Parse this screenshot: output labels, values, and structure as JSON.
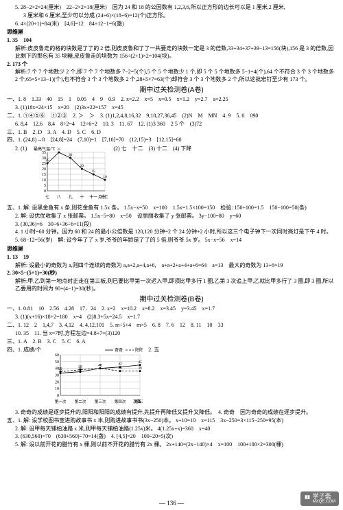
{
  "top": {
    "l1": "5. 28−2×2=24(厘米)　22−2×2=18(厘米)　因为 24 和 18 的公因数有 1,2,3,6,所以正方形的边长可以是 1 厘米,2 厘米,",
    "l2": "3 厘米和 6 厘米,至少可以分成 (24÷6)×(18÷6)=12(个)正方形。",
    "l3": "6. 4×(20÷1)=84(米)　[4,6]=12　84÷12−1=6(盏)"
  },
  "ssA": "思维屋",
  "swA": {
    "l1": "1. 35　104",
    "l2": "解析:皮皮鲁走的格的块数是了了的 2 倍,则皮皮鲁和了了一共要走的块数一定是 3 的倍数,33+34+37+39−13=156(块),156 是 3 的倍数,因此剩下的那包有 35 块糖,皮皮鲁走的块数为 156÷(2+1)×2=104(块)。",
    "l3": "2. 173 个",
    "l4": "解析:7 个 7 个地数少 2 个,即 7 个 7 个地数多 7−2=5(个),5 个 5 个地数少 1 个,即 5 个 5 个地数多 5−1=4(个),64 个不符合 3 个 3 个地数多 2 个,65=5×13−1)(个),也不符合 3 个 3 个地数多 2 个,28+5×7=63(个)却符合 3 个 3 个地数多 2 个,所以这批宏钉至少有 173 个。"
  },
  "midTitleA": "期中过关检测卷(A卷)",
  "secA": {
    "one": "一、1. 8　1.33　40　15　1　0.05　4　9　0.9　2. x=2.2　x=5　x=0.5　x=1.2　y=2.7　a=2.25",
    "one2": "3. (1)18x=24×15　x=20　(2)3x+22=157　x=45",
    "two": "二、1. ①④⑤⑥　①②③　2. ＞　＞　3. (1)1,2,4,8,16,32　9,18,27,36,45　(2)N　M　MN　4. 9　5. 0　090",
    "two2": "6. 8,4　12,6　8,4　8÷2=4　12÷6=2　10. 3　11. 67　12. (1)3 360　2 5 个　(3)72",
    "three": "三、1. B　2. D　3. A　4. D　5. C　6. D",
    "four": "四、1. (24,8)→8　[24,8]=24　(7,10)=1　[7,10]=70　(12,15)=3　[12,15]=60",
    "fourchart_label": "2. (1)",
    "fourchart_side": "(2) 七　十二　(3) 十二　(4) 下降",
    "five": "五、1. 解: 设黑金鱼有 x 条,则花金鱼有 1.5x 条。 1.5x−x=50　x=100　1.5x=1.5×100=150　检验: 150÷100=1.5　150−100=50(条)",
    "five2": "2. 解: 设优优收集了 x 张邮票。 1.5x−5=80　x=50　设丽丽收集了 y 张邮票。 3y−100=80　y=60",
    "five3": "3. (30,36)=6　30÷6+36÷6=11(段)",
    "five4": "4. 1 小时=60 分钟。因为 60 和 24 的最小公倍数是 120,120 分钟=2 个 24 分钟+2 小时,所以这三个电子钟下一次同时亮灯是下午 4 时。",
    "five5": "5. 68−12=56(岁)　解: 设今年了了 x 岁,爷爷的年龄是了了的 5 倍,则爷爷 5x 岁。 5x−x=56　x=14"
  },
  "ssB": "思维屋",
  "swB": {
    "l1": "1. 13　19",
    "l2": "解析: 设最小的奇数为 a,则四个连续的奇数为 a,a+2,a+4,a+6,　a+a+2+a+4+a+6=64　a=13　最大的奇数为 13+6=19",
    "l3": "2. 30×5−(5+1)=30(秒)",
    "l4": "解析:甲,乙到第一地点时正走在第三板,则已要比甲第一次迟入甲,即须比甲多行 1 圈,乙第 3 次追上甲,乙就比甲多行了 3 圈,即 3 圈,所以乙要用的时间为 90÷(4−1)=30(秒)。"
  },
  "midTitleB": "期中过关检测卷(B卷)",
  "secB": {
    "one": "一、1. 0.81　10　2.56　4.28　17．24　2. x=2　x=10.2　x=8.2　x=3.45　y=3.45　x=1.7",
    "one2": "3. (1)(x+16)×18÷2=180　x=4　(2)8.3+5x=24.5　x=1.7",
    "two": "二、1. 12　2　1,4,7　3. 4,12　4. 4,12,101　5. m÷5+4　m×5　6. 8　7. 6　12　8. 11　10　33",
    "two2": "10. 35　11. 当 x=7时,方程左边=4.8+7=(3)120",
    "three": "三、1. A　2. B　3. C　5. C　6. A",
    "four_label": "四、1. 成绩/个",
    "four_side": "2. 五",
    "four_legend1": "奇奇",
    "four_legend2": "阳阳",
    "four_bot": "3. 奇奇的成绩是逐步提升的,阳阳和阳阳的成绩有提升,先提升再降低又提升又降低。　4. 奇奇　因为奇奇的成绩在逐步提升。",
    "five": "五、1. 解: 设学校图书室进购故事书 x 本,则购进故事书书(3x−250)本。 x+10=10　x=115　3x−250=3×115−250=95(本)",
    "five2": "2. 解: 设甲每天铺柏油路 x 米,则甲每天铺柏油路(1.25x)米。 4(1.25x+x)=360　x=40",
    "five3": "3. (630,560)=70　(630+560)÷70=14(盏)　4. [4,5]=20　100÷20=5(次)",
    "five4": "5. 解: 设以前开花的腊竹有 x 棵,则以前不开花的腊竹有 2x 棵。 2x+140=(2x−140)×4　x=100　100+100×2=300(棵)"
  },
  "chartA": {
    "title": "最高气温/℃",
    "xTitle": "月份",
    "xLabels": [
      "七",
      "八",
      "九",
      "十",
      "十一",
      "十二"
    ],
    "yMax": 35,
    "yStep": 5,
    "values": [
      25,
      35,
      30,
      20,
      15,
      10
    ],
    "lineColor": "#000000",
    "gridColor": "#888888",
    "bg": "#ffffff",
    "width": 110,
    "height": 80
  },
  "chartB": {
    "xTitle": "次数",
    "xLabels": [
      "第一次",
      "第二次",
      "第三次",
      "第四次",
      "第五次"
    ],
    "yMax": 60,
    "yStep": 10,
    "series": [
      {
        "name": "奇奇",
        "values": [
          33,
          35,
          40,
          42,
          45
        ],
        "color": "#000000",
        "dash": "0"
      },
      {
        "name": "阳阳",
        "values": [
          35,
          38,
          40,
          36,
          36
        ],
        "color": "#000000",
        "dash": "3,2"
      }
    ],
    "gridColor": "#888888",
    "bg": "#ffffff",
    "width": 140,
    "height": 85
  },
  "pageNum": "— 136 —",
  "watermark": {
    "brand": "学子斋",
    "sub": "MXQE.COM"
  }
}
